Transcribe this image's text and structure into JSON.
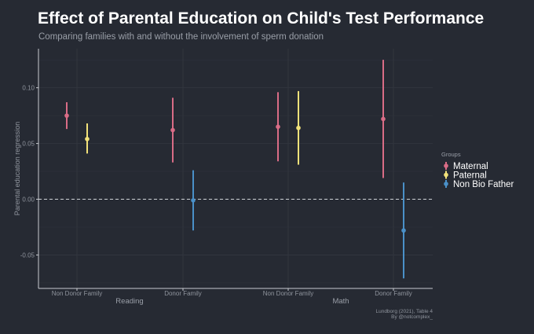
{
  "title": "Effect of Parental Education on Child's Test Performance",
  "subtitle": "Comparing families with and without the involvement of sperm donation",
  "caption": [
    "Lundborg (2021), Table 4",
    "By @notcomplex_"
  ],
  "colors": {
    "background": "#262a33",
    "grid": "#31353e",
    "axis": "#c8cbd0",
    "zero_line": "#d0d3d8",
    "Maternal": "#d96c86",
    "Paternal": "#f2e27a",
    "Non Bio Father": "#4a90c8"
  },
  "chart_data": {
    "type": "errorbar",
    "title": "Effect of Parental Education on Child's Test Performance",
    "ylabel": "Parental education regression",
    "xlabel": "",
    "ylim": [
      -0.08,
      0.135
    ],
    "yticks": [
      -0.05,
      0.0,
      0.05,
      0.1
    ],
    "ytick_labels": [
      "-0.05",
      "0.00",
      "0.05",
      "0.10"
    ],
    "reference_line": 0,
    "legend": {
      "title": "Groups",
      "position": "right",
      "entries": [
        "Maternal",
        "Paternal",
        "Non Bio Father"
      ]
    },
    "groups": [
      {
        "label": "Reading",
        "categories": [
          "Non Donor Family",
          "Donor Family"
        ]
      },
      {
        "label": "Math",
        "categories": [
          "Non Donor Family",
          "Donor Family"
        ]
      }
    ],
    "points": [
      {
        "group": "Reading",
        "category": "Non Donor Family",
        "series": "Maternal",
        "estimate": 0.075,
        "lower": 0.063,
        "upper": 0.087
      },
      {
        "group": "Reading",
        "category": "Non Donor Family",
        "series": "Paternal",
        "estimate": 0.054,
        "lower": 0.041,
        "upper": 0.068
      },
      {
        "group": "Reading",
        "category": "Donor Family",
        "series": "Maternal",
        "estimate": 0.062,
        "lower": 0.033,
        "upper": 0.091
      },
      {
        "group": "Reading",
        "category": "Donor Family",
        "series": "Non Bio Father",
        "estimate": -0.001,
        "lower": -0.028,
        "upper": 0.026
      },
      {
        "group": "Math",
        "category": "Non Donor Family",
        "series": "Maternal",
        "estimate": 0.065,
        "lower": 0.034,
        "upper": 0.096
      },
      {
        "group": "Math",
        "category": "Non Donor Family",
        "series": "Paternal",
        "estimate": 0.064,
        "lower": 0.031,
        "upper": 0.097
      },
      {
        "group": "Math",
        "category": "Donor Family",
        "series": "Maternal",
        "estimate": 0.072,
        "lower": 0.019,
        "upper": 0.125
      },
      {
        "group": "Math",
        "category": "Donor Family",
        "series": "Non Bio Father",
        "estimate": -0.028,
        "lower": -0.071,
        "upper": 0.015
      }
    ]
  }
}
